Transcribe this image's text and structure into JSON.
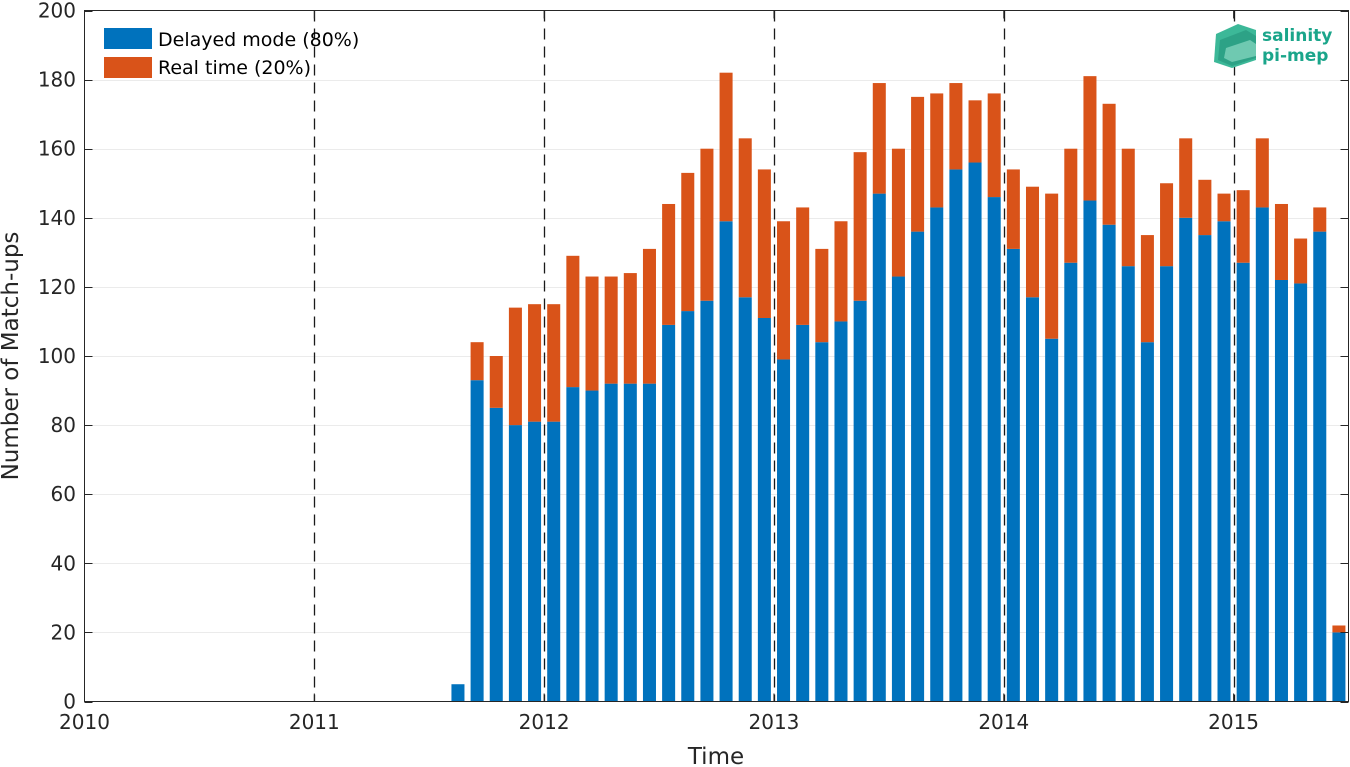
{
  "chart_data": {
    "type": "bar",
    "stacked": true,
    "xlabel": "Time",
    "ylabel": "Number of Match-ups",
    "ylim": [
      0,
      200
    ],
    "yticks": [
      0,
      20,
      40,
      60,
      80,
      100,
      120,
      140,
      160,
      180,
      200
    ],
    "xlim": [
      2010,
      2015.5
    ],
    "xticks": [
      2010,
      2011,
      2012,
      2013,
      2014,
      2015
    ],
    "xtick_labels": [
      "2010",
      "2011",
      "2012",
      "2013",
      "2014",
      "2015"
    ],
    "year_separators": [
      2011,
      2012,
      2013,
      2014,
      2015
    ],
    "grid": true,
    "legend_position": "top-left",
    "logo": [
      "salinity",
      "pi-mep"
    ],
    "months": [
      "2011-08",
      "2011-09",
      "2011-10",
      "2011-11",
      "2011-12",
      "2012-01",
      "2012-02",
      "2012-03",
      "2012-04",
      "2012-05",
      "2012-06",
      "2012-07",
      "2012-08",
      "2012-09",
      "2012-10",
      "2012-11",
      "2012-12",
      "2013-01",
      "2013-02",
      "2013-03",
      "2013-04",
      "2013-05",
      "2013-06",
      "2013-07",
      "2013-08",
      "2013-09",
      "2013-10",
      "2013-11",
      "2013-12",
      "2014-01",
      "2014-02",
      "2014-03",
      "2014-04",
      "2014-05",
      "2014-06",
      "2014-07",
      "2014-08",
      "2014-09",
      "2014-10",
      "2014-11",
      "2014-12",
      "2015-01",
      "2015-02",
      "2015-03",
      "2015-04",
      "2015-05",
      "2015-06"
    ],
    "series": [
      {
        "name": "Delayed mode (80%)",
        "color": "#0072bd",
        "values": [
          5,
          93,
          85,
          80,
          81,
          81,
          91,
          90,
          92,
          92,
          92,
          109,
          113,
          116,
          139,
          117,
          111,
          99,
          109,
          104,
          110,
          116,
          147,
          123,
          136,
          143,
          154,
          156,
          146,
          131,
          117,
          105,
          127,
          145,
          138,
          126,
          104,
          126,
          140,
          135,
          139,
          127,
          143,
          122,
          121,
          136,
          20
        ]
      },
      {
        "name": "Real time (20%)",
        "color": "#d95319",
        "values": [
          0,
          11,
          15,
          34,
          34,
          34,
          38,
          33,
          31,
          32,
          39,
          35,
          40,
          44,
          43,
          46,
          43,
          40,
          34,
          27,
          29,
          43,
          32,
          37,
          39,
          33,
          25,
          18,
          30,
          23,
          32,
          42,
          33,
          36,
          35,
          34,
          31,
          24,
          23,
          16,
          8,
          21,
          20,
          22,
          13,
          7,
          2
        ]
      }
    ]
  }
}
